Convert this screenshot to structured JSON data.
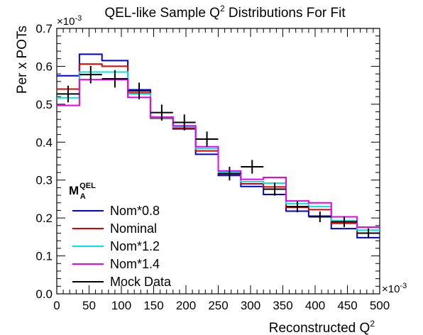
{
  "chart_data": {
    "type": "line",
    "title": "QEL-like Sample Q",
    "title_superscript": "2",
    "title_suffix": " Distributions For Fit",
    "xlabel": "Reconstructed Q",
    "xlabel_superscript": "2",
    "ylabel": "Per x POTs",
    "x_multiplier": "×10",
    "x_multiplier_exp": "-3",
    "y_multiplier": "×10",
    "y_multiplier_exp": "-3",
    "xlim": [
      0,
      500
    ],
    "ylim": [
      0,
      0.7
    ],
    "x_ticks": [
      "0",
      "50",
      "100",
      "150",
      "200",
      "250",
      "300",
      "350",
      "400",
      "450",
      "500"
    ],
    "y_ticks": [
      "0.0",
      "0.1",
      "0.2",
      "0.3",
      "0.4",
      "0.5",
      "0.6",
      "0.7"
    ],
    "bin_edges": [
      0,
      35,
      70,
      110,
      145,
      180,
      215,
      250,
      285,
      320,
      355,
      390,
      425,
      465,
      500
    ],
    "legend": {
      "title_main": "M",
      "title_sup": "QEL",
      "title_sub": "A",
      "placement": "left"
    },
    "series": [
      {
        "name": "Nom*0.8",
        "color": "#0000dd",
        "style": "hist",
        "values": [
          0.575,
          0.632,
          0.615,
          0.538,
          0.463,
          0.435,
          0.368,
          0.312,
          0.283,
          0.262,
          0.218,
          0.205,
          0.172,
          0.148
        ]
      },
      {
        "name": "Nominal",
        "color": "#dd0000",
        "style": "hist",
        "values": [
          0.54,
          0.606,
          0.6,
          0.53,
          0.464,
          0.438,
          0.377,
          0.316,
          0.29,
          0.282,
          0.228,
          0.222,
          0.186,
          0.16
        ]
      },
      {
        "name": "Nom*1.2",
        "color": "#00e5e5",
        "style": "hist",
        "values": [
          0.517,
          0.585,
          0.585,
          0.527,
          0.465,
          0.44,
          0.383,
          0.32,
          0.296,
          0.292,
          0.238,
          0.23,
          0.193,
          0.168
        ]
      },
      {
        "name": "Nom*1.4",
        "color": "#ee00ee",
        "style": "hist",
        "values": [
          0.497,
          0.565,
          0.565,
          0.518,
          0.466,
          0.443,
          0.388,
          0.324,
          0.302,
          0.307,
          0.245,
          0.24,
          0.203,
          0.176
        ]
      },
      {
        "name": "Mock Data",
        "color": "#000000",
        "style": "points",
        "x": [
          17.5,
          52.5,
          90,
          127.5,
          162.5,
          197.5,
          232.5,
          267.5,
          302.5,
          337.5,
          372.5,
          407.5,
          445,
          482.5
        ],
        "values": [
          0.527,
          0.578,
          0.567,
          0.535,
          0.478,
          0.452,
          0.408,
          0.317,
          0.335,
          0.276,
          0.23,
          0.203,
          0.19,
          0.16
        ],
        "yerr": [
          0.022,
          0.023,
          0.023,
          0.022,
          0.021,
          0.021,
          0.02,
          0.018,
          0.018,
          0.017,
          0.015,
          0.014,
          0.014,
          0.013
        ]
      }
    ]
  }
}
